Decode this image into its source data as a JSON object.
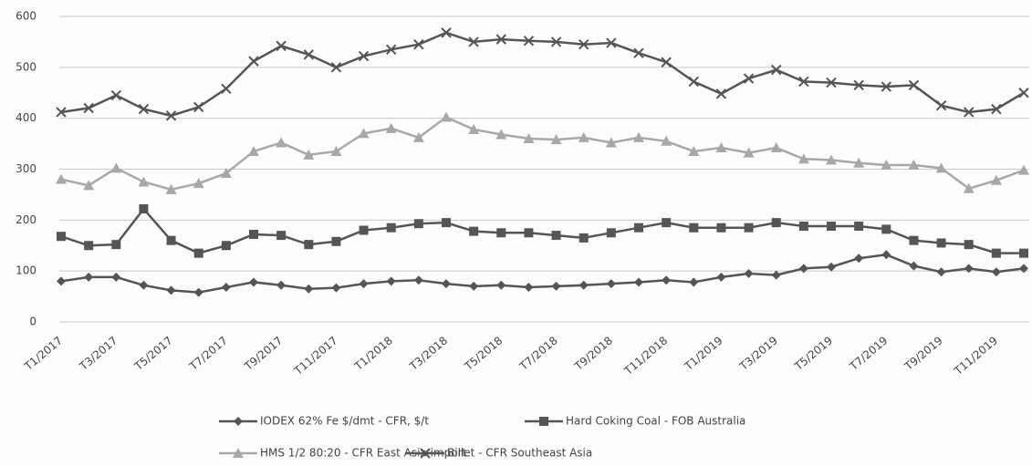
{
  "chart_data": {
    "type": "line",
    "categories": [
      "T1/2017",
      null,
      "T3/2017",
      null,
      "T5/2017",
      null,
      "T7/2017",
      null,
      "T9/2017",
      null,
      "T11/2017",
      null,
      "T1/2018",
      null,
      "T3/2018",
      null,
      "T5/2018",
      null,
      "T7/2018",
      null,
      "T9/2018",
      null,
      "T11/2018",
      null,
      "T1/2019",
      null,
      "T3/2019",
      null,
      "T5/2019",
      null,
      "T7/2019",
      null,
      "T9/2019",
      null,
      "T11/2019",
      null
    ],
    "series": [
      {
        "name": "IODEX 62% Fe $/dmt - CFR, $/t",
        "color": "#555555",
        "marker": "diamond",
        "values": [
          80,
          88,
          88,
          72,
          62,
          58,
          68,
          78,
          72,
          65,
          67,
          75,
          80,
          82,
          75,
          70,
          72,
          68,
          70,
          72,
          75,
          78,
          82,
          78,
          88,
          95,
          92,
          105,
          108,
          125,
          132,
          110,
          98,
          105,
          98,
          105
        ]
      },
      {
        "name": "Hard Coking Coal - FOB Australia",
        "color": "#555555",
        "marker": "square",
        "values": [
          168,
          150,
          152,
          222,
          160,
          135,
          150,
          172,
          170,
          152,
          158,
          180,
          185,
          193,
          195,
          178,
          175,
          175,
          170,
          165,
          175,
          185,
          195,
          185,
          185,
          185,
          195,
          188,
          188,
          188,
          182,
          160,
          155,
          152,
          135,
          135
        ]
      },
      {
        "name": "HMS 1/2 80:20 - CFR East Asia import",
        "color": "#a8a8a8",
        "marker": "triangle",
        "values": [
          280,
          268,
          302,
          275,
          260,
          272,
          292,
          335,
          352,
          328,
          335,
          370,
          380,
          362,
          402,
          378,
          368,
          360,
          358,
          362,
          352,
          362,
          355,
          335,
          342,
          332,
          342,
          320,
          318,
          312,
          308,
          308,
          302,
          262,
          278,
          298
        ]
      },
      {
        "name": "Billet - CFR Southeast Asia",
        "color": "#555555",
        "marker": "x",
        "values": [
          412,
          420,
          445,
          418,
          405,
          422,
          458,
          512,
          542,
          525,
          500,
          522,
          535,
          545,
          568,
          550,
          555,
          552,
          550,
          545,
          548,
          528,
          510,
          472,
          448,
          478,
          495,
          472,
          470,
          465,
          462,
          465,
          425,
          412,
          418,
          450
        ]
      }
    ],
    "ylim": [
      0,
      600
    ],
    "yticks": [
      0,
      100,
      200,
      300,
      400,
      500,
      600
    ],
    "grid": true
  }
}
